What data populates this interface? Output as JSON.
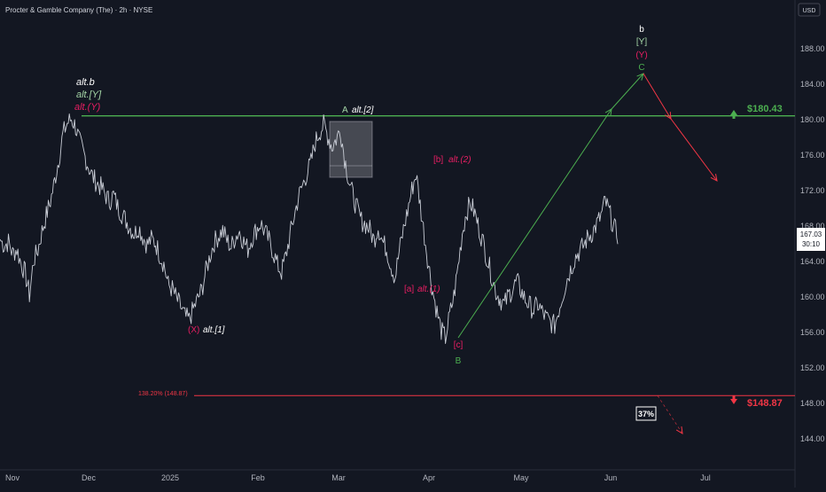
{
  "header": {
    "symbol_title": "Procter & Gamble Company (The) · 2h · NYSE",
    "currency": "USD"
  },
  "price_badge": {
    "price": "167.03",
    "countdown": "30:10"
  },
  "colors": {
    "background": "#131722",
    "price_series": "#c9cdd6",
    "green": "#4caf50",
    "green_bright": "#8ee58e",
    "red": "#f23645",
    "magenta": "#e91e63",
    "white_label": "#ffffff"
  },
  "chart_data": {
    "type": "line",
    "x_axis": {
      "tick_labels": [
        "Nov",
        "Dec",
        "2025",
        "Feb",
        "Mar",
        "Apr",
        "May",
        "Jun",
        "Jul"
      ]
    },
    "y_axis": {
      "ylim": [
        141.5,
        191.5
      ],
      "ticks": [
        144,
        148,
        152,
        156,
        160,
        164,
        168,
        172,
        176,
        180,
        184,
        188
      ],
      "tick_labels": [
        "144.00",
        "148.00",
        "152.00",
        "156.00",
        "160.00",
        "164.00",
        "168.00",
        "172.00",
        "176.00",
        "180.00",
        "184.00",
        "188.00"
      ]
    },
    "series": [
      {
        "values": [
          166.5,
          165.8,
          166.2,
          164.9,
          165.4,
          163.8,
          162.7,
          160.2,
          164.1,
          165.3,
          167.4,
          169.2,
          170.8,
          173.1,
          175.6,
          178.4,
          179.6,
          180.1,
          179.2,
          177.4,
          176.1,
          174.8,
          173.6,
          172.9,
          172.4,
          171.6,
          170.8,
          171.5,
          170.2,
          169.4,
          168.6,
          167.8,
          167.1,
          167.9,
          166.8,
          165.9,
          166.5,
          166.1,
          164.8,
          163.7,
          161.4,
          160.9,
          159.8,
          158.9,
          157.8,
          157.4,
          158.6,
          159.7,
          160.8,
          162.9,
          164.7,
          166.2,
          166.9,
          167.5,
          166.4,
          165.6,
          166.8,
          167.4,
          166.2,
          165.4,
          166.7,
          167.6,
          168.3,
          167.4,
          166.4,
          165.1,
          163.6,
          162.8,
          164.6,
          166.9,
          169.1,
          171.2,
          172.6,
          173.9,
          175.2,
          177.4,
          178.6,
          179.4,
          178.2,
          176.9,
          177.8,
          178.9,
          175.7,
          173.2,
          171.4,
          169.9,
          168.6,
          168.2,
          167.6,
          166.4,
          167.9,
          166.3,
          165.4,
          163.6,
          162.2,
          165.1,
          167.6,
          169.7,
          172.1,
          173.9,
          170.4,
          166.9,
          163.6,
          160.6,
          158.3,
          156.2,
          155.4,
          157.9,
          160.1,
          163.4,
          167.2,
          169.6,
          170.6,
          169.4,
          167.7,
          166.1,
          164.2,
          162.4,
          160.6,
          159.8,
          159.1,
          160.2,
          160.9,
          161.8,
          160.7,
          159.7,
          159.1,
          158.5,
          159.2,
          158.3,
          157.6,
          157.1,
          156.8,
          158.6,
          160.4,
          162.1,
          163.4,
          164.6,
          165.2,
          165.9,
          166.8,
          167.3,
          168.2,
          169.1,
          170.8,
          169.6,
          167.9,
          167.03
        ],
        "color": "#c9cdd6"
      }
    ],
    "horizontal_levels": [
      {
        "price": 180.43,
        "label": "$180.43",
        "color": "#4caf50"
      },
      {
        "price": 148.87,
        "label": "$148.87",
        "color": "#f23645",
        "left_label": "138.20% (148.87)"
      }
    ],
    "projections": [
      {
        "from": 155.4,
        "to": 185.2,
        "color": "#4caf50"
      },
      {
        "from": 185.2,
        "to": 173.1,
        "color": "#f23645"
      },
      {
        "from": 148.87,
        "to": 144.6,
        "color": "#f23645",
        "style": "dashed"
      }
    ],
    "annotations": {
      "alt_b_stack": [
        "alt.b",
        "alt.[Y]",
        "alt.(Y)"
      ],
      "a_label": "A",
      "alt_2": "alt.[2]",
      "b_top_stack": [
        "b",
        "[Y]",
        "(Y)",
        "C"
      ],
      "b_bracket": "[b]",
      "alt_paren_2": "alt.(2)",
      "a_bracket": "[a]",
      "alt_paren_1": "alt.(1)",
      "c_bracket": "[c]",
      "b_label": "B",
      "x_paren": "(X)",
      "alt_bracket_1": "alt.[1]",
      "probability": "37%"
    }
  }
}
